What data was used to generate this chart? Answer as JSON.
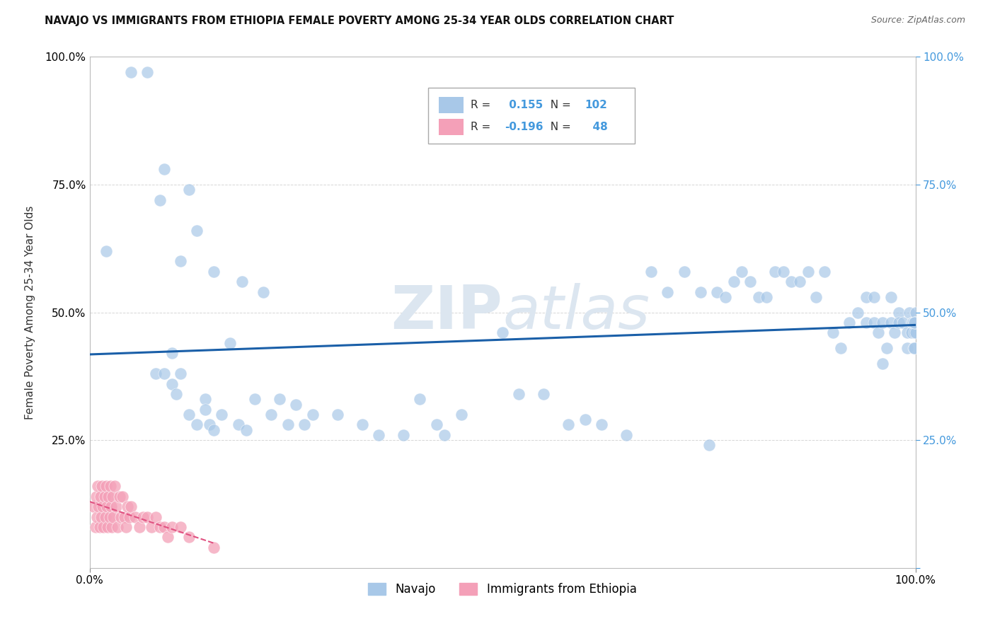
{
  "title": "NAVAJO VS IMMIGRANTS FROM ETHIOPIA FEMALE POVERTY AMONG 25-34 YEAR OLDS CORRELATION CHART",
  "source": "Source: ZipAtlas.com",
  "ylabel": "Female Poverty Among 25-34 Year Olds",
  "xlim": [
    0.0,
    1.0
  ],
  "ylim": [
    0.0,
    1.0
  ],
  "navajo_R": 0.155,
  "navajo_N": 102,
  "ethiopia_R": -0.196,
  "ethiopia_N": 48,
  "navajo_color": "#a8c8e8",
  "ethiopia_color": "#f4a0b8",
  "navajo_line_color": "#1a5fa8",
  "ethiopia_line_color": "#e05080",
  "background_color": "#ffffff",
  "watermark_color": "#dce6f0",
  "grid_color": "#cccccc",
  "right_tick_color": "#4499dd",
  "navajo_x": [
    0.02,
    0.05,
    0.07,
    0.08,
    0.085,
    0.09,
    0.09,
    0.1,
    0.1,
    0.105,
    0.11,
    0.11,
    0.12,
    0.12,
    0.13,
    0.13,
    0.14,
    0.14,
    0.145,
    0.15,
    0.15,
    0.16,
    0.17,
    0.18,
    0.185,
    0.19,
    0.2,
    0.21,
    0.22,
    0.23,
    0.24,
    0.25,
    0.26,
    0.27,
    0.3,
    0.33,
    0.35,
    0.38,
    0.4,
    0.42,
    0.43,
    0.45,
    0.5,
    0.52,
    0.55,
    0.58,
    0.6,
    0.62,
    0.65,
    0.68,
    0.7,
    0.72,
    0.74,
    0.75,
    0.76,
    0.77,
    0.78,
    0.79,
    0.8,
    0.81,
    0.82,
    0.83,
    0.84,
    0.85,
    0.86,
    0.87,
    0.88,
    0.89,
    0.9,
    0.91,
    0.92,
    0.93,
    0.94,
    0.94,
    0.95,
    0.95,
    0.955,
    0.96,
    0.96,
    0.965,
    0.97,
    0.97,
    0.975,
    0.98,
    0.98,
    0.985,
    0.99,
    0.99,
    0.993,
    0.995,
    0.996,
    0.997,
    0.998,
    0.999,
    0.999,
    0.999,
    1.0,
    1.0,
    1.0,
    1.0,
    0.999,
    0.999
  ],
  "navajo_y": [
    0.62,
    0.97,
    0.97,
    0.38,
    0.72,
    0.78,
    0.38,
    0.42,
    0.36,
    0.34,
    0.6,
    0.38,
    0.3,
    0.74,
    0.28,
    0.66,
    0.33,
    0.31,
    0.28,
    0.27,
    0.58,
    0.3,
    0.44,
    0.28,
    0.56,
    0.27,
    0.33,
    0.54,
    0.3,
    0.33,
    0.28,
    0.32,
    0.28,
    0.3,
    0.3,
    0.28,
    0.26,
    0.26,
    0.33,
    0.28,
    0.26,
    0.3,
    0.46,
    0.34,
    0.34,
    0.28,
    0.29,
    0.28,
    0.26,
    0.58,
    0.54,
    0.58,
    0.54,
    0.24,
    0.54,
    0.53,
    0.56,
    0.58,
    0.56,
    0.53,
    0.53,
    0.58,
    0.58,
    0.56,
    0.56,
    0.58,
    0.53,
    0.58,
    0.46,
    0.43,
    0.48,
    0.5,
    0.48,
    0.53,
    0.53,
    0.48,
    0.46,
    0.48,
    0.4,
    0.43,
    0.53,
    0.48,
    0.46,
    0.5,
    0.48,
    0.48,
    0.46,
    0.43,
    0.5,
    0.46,
    0.48,
    0.48,
    0.43,
    0.48,
    0.46,
    0.43,
    0.5,
    0.46,
    0.48,
    0.48,
    0.48,
    0.48
  ],
  "ethiopia_x": [
    0.005,
    0.007,
    0.008,
    0.009,
    0.01,
    0.011,
    0.012,
    0.013,
    0.014,
    0.015,
    0.016,
    0.017,
    0.018,
    0.019,
    0.02,
    0.021,
    0.022,
    0.023,
    0.024,
    0.025,
    0.026,
    0.027,
    0.028,
    0.029,
    0.03,
    0.032,
    0.034,
    0.036,
    0.038,
    0.04,
    0.042,
    0.044,
    0.046,
    0.048,
    0.05,
    0.055,
    0.06,
    0.065,
    0.07,
    0.075,
    0.08,
    0.085,
    0.09,
    0.095,
    0.1,
    0.11,
    0.12,
    0.15
  ],
  "ethiopia_y": [
    0.12,
    0.08,
    0.14,
    0.1,
    0.16,
    0.12,
    0.08,
    0.14,
    0.1,
    0.16,
    0.12,
    0.08,
    0.14,
    0.1,
    0.16,
    0.12,
    0.08,
    0.14,
    0.1,
    0.16,
    0.12,
    0.08,
    0.14,
    0.1,
    0.16,
    0.12,
    0.08,
    0.14,
    0.1,
    0.14,
    0.1,
    0.08,
    0.12,
    0.1,
    0.12,
    0.1,
    0.08,
    0.1,
    0.1,
    0.08,
    0.1,
    0.08,
    0.08,
    0.06,
    0.08,
    0.08,
    0.06,
    0.04
  ]
}
